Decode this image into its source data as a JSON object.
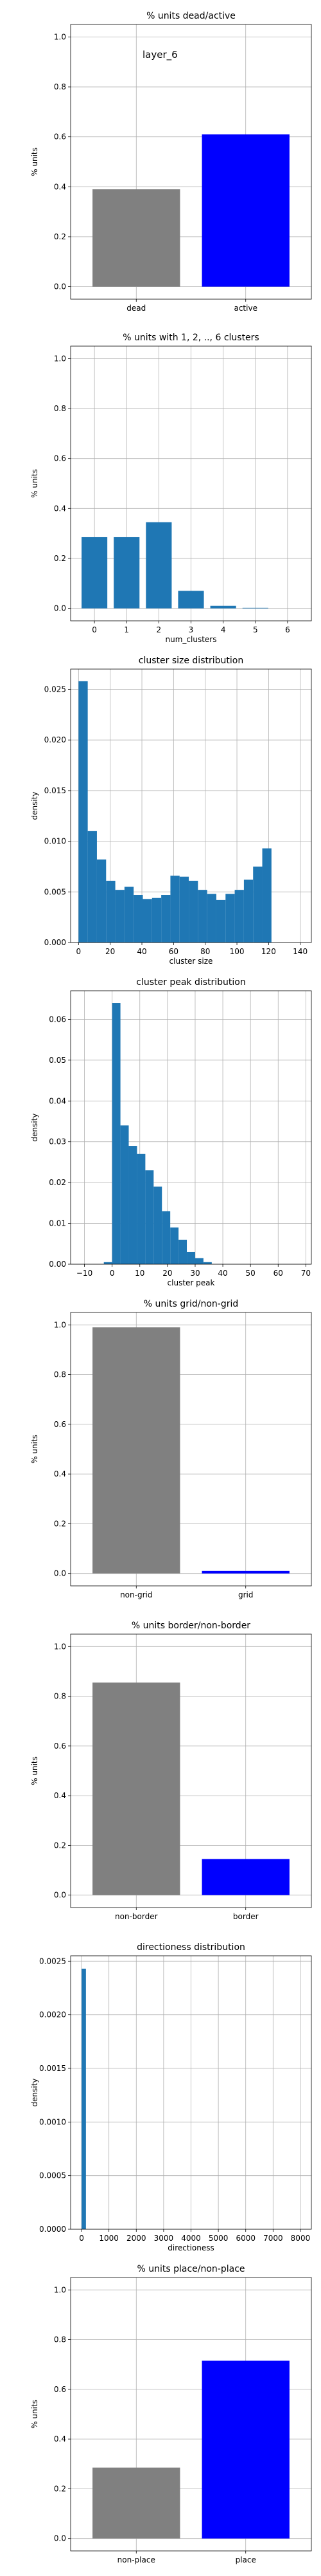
{
  "chart_data": [
    {
      "type": "bar",
      "title": "% units dead/active",
      "annotation": "layer_6",
      "xlabel": "",
      "ylabel": "% units",
      "categories": [
        "dead",
        "active"
      ],
      "values": [
        0.39,
        0.61
      ],
      "colors": [
        "#808080",
        "#0000ff"
      ],
      "ylim": [
        -0.05,
        1.05
      ],
      "yticks": [
        "0.0",
        "0.2",
        "0.4",
        "0.6",
        "0.8",
        "1.0"
      ],
      "grid": true
    },
    {
      "type": "bar",
      "title": "% units with 1, 2, .., 6 clusters",
      "xlabel": "num_clusters",
      "ylabel": "% units",
      "x": [
        0,
        1,
        2,
        3,
        4,
        5,
        6
      ],
      "xticks": [
        "0",
        "1",
        "2",
        "3",
        "4",
        "5",
        "6"
      ],
      "values": [
        0.285,
        0.285,
        0.345,
        0.07,
        0.01,
        0.002,
        0.0
      ],
      "color": "#1f77b4",
      "ylim": [
        -0.05,
        1.05
      ],
      "yticks": [
        "0.0",
        "0.2",
        "0.4",
        "0.6",
        "0.8",
        "1.0"
      ],
      "grid": true
    },
    {
      "type": "bar",
      "title": "cluster size distribution",
      "xlabel": "cluster size",
      "ylabel": "density",
      "bin_start": 0,
      "bin_width": 5.8,
      "values": [
        0.0258,
        0.011,
        0.0082,
        0.0061,
        0.0052,
        0.0055,
        0.0047,
        0.0043,
        0.0044,
        0.0047,
        0.0066,
        0.0065,
        0.0061,
        0.0052,
        0.0048,
        0.0042,
        0.0048,
        0.0052,
        0.0062,
        0.0075,
        0.0093
      ],
      "color": "#1f77b4",
      "xlim": [
        -5,
        147
      ],
      "ylim": [
        0,
        0.027
      ],
      "xticks": [
        "0",
        "20",
        "40",
        "60",
        "80",
        "100",
        "120",
        "140"
      ],
      "yticks": [
        "0.000",
        "0.005",
        "0.010",
        "0.015",
        "0.020",
        "0.025"
      ],
      "grid": true
    },
    {
      "type": "bar",
      "title": "cluster peak distribution",
      "xlabel": "cluster peak",
      "ylabel": "density",
      "bin_start": -3,
      "bin_width": 3,
      "values": [
        0.0005,
        0.064,
        0.034,
        0.029,
        0.027,
        0.023,
        0.019,
        0.013,
        0.009,
        0.006,
        0.003,
        0.0015,
        0.0005
      ],
      "color": "#1f77b4",
      "xlim": [
        -15,
        72
      ],
      "ylim": [
        0,
        0.067
      ],
      "xticks": [
        "−10",
        "0",
        "10",
        "20",
        "30",
        "40",
        "50",
        "60",
        "70"
      ],
      "yticks": [
        "0.00",
        "0.01",
        "0.02",
        "0.03",
        "0.04",
        "0.05",
        "0.06"
      ],
      "grid": true
    },
    {
      "type": "bar",
      "title": "% units grid/non-grid",
      "xlabel": "",
      "ylabel": "% units",
      "categories": [
        "non-grid",
        "grid"
      ],
      "values": [
        0.99,
        0.01
      ],
      "colors": [
        "#808080",
        "#0000ff"
      ],
      "ylim": [
        -0.05,
        1.05
      ],
      "yticks": [
        "0.0",
        "0.2",
        "0.4",
        "0.6",
        "0.8",
        "1.0"
      ],
      "grid": true
    },
    {
      "type": "bar",
      "title": "% units border/non-border",
      "xlabel": "",
      "ylabel": "% units",
      "categories": [
        "non-border",
        "border"
      ],
      "values": [
        0.855,
        0.145
      ],
      "colors": [
        "#808080",
        "#0000ff"
      ],
      "ylim": [
        -0.05,
        1.05
      ],
      "yticks": [
        "0.0",
        "0.2",
        "0.4",
        "0.6",
        "0.8",
        "1.0"
      ],
      "grid": true
    },
    {
      "type": "bar",
      "title": "directioness distribution",
      "xlabel": "directioness",
      "ylabel": "density",
      "bin_start": 0,
      "bin_width": 160,
      "values": [
        0.00243,
        0.0
      ],
      "color": "#1f77b4",
      "xlim": [
        -400,
        8400
      ],
      "ylim": [
        0,
        0.00255
      ],
      "xticks": [
        "0",
        "1000",
        "2000",
        "3000",
        "4000",
        "5000",
        "6000",
        "7000",
        "8000"
      ],
      "yticks": [
        "0.0000",
        "0.0005",
        "0.0010",
        "0.0015",
        "0.0020",
        "0.0025"
      ],
      "grid": true
    },
    {
      "type": "bar",
      "title": "% units place/non-place",
      "xlabel": "",
      "ylabel": "% units",
      "categories": [
        "non-place",
        "place"
      ],
      "values": [
        0.285,
        0.715
      ],
      "colors": [
        "#808080",
        "#0000ff"
      ],
      "ylim": [
        -0.05,
        1.05
      ],
      "yticks": [
        "0.0",
        "0.2",
        "0.4",
        "0.6",
        "0.8",
        "1.0"
      ],
      "grid": true
    }
  ]
}
